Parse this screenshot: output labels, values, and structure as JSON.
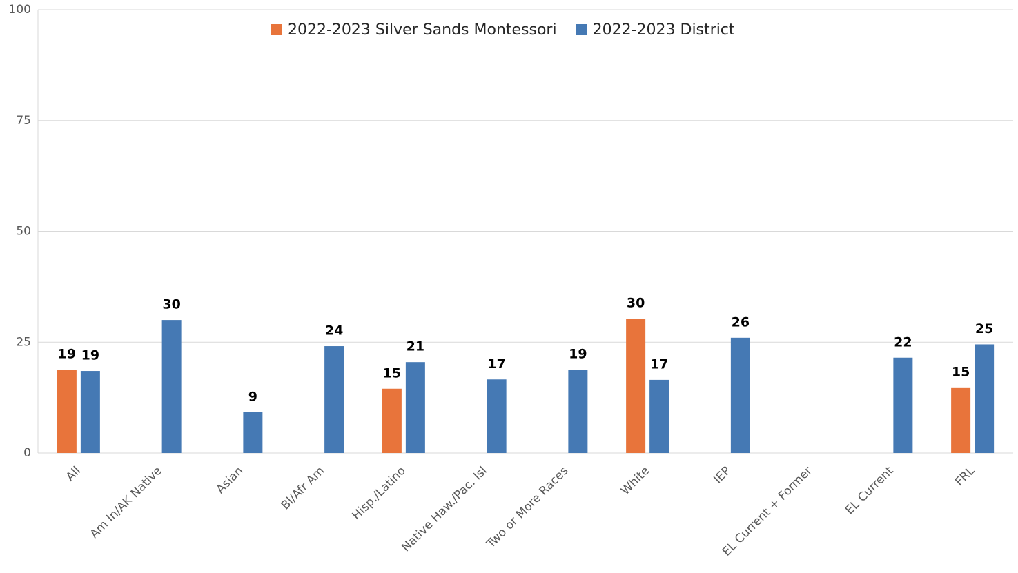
{
  "chart_data": {
    "type": "bar",
    "categories": [
      "All",
      "Am In/AK Native",
      "Asian",
      "Bl/Afr Am",
      "Hisp./Latino",
      "Native Haw./Pac. Isl",
      "Two or More Races",
      "White",
      "IEP",
      "EL Current + Former",
      "EL Current",
      "FRL"
    ],
    "series": [
      {
        "name": "2022-2023 Silver Sands Montessori",
        "color": "#e8743b",
        "values": [
          18.8,
          null,
          null,
          null,
          14.5,
          null,
          null,
          30.3,
          null,
          null,
          null,
          14.8
        ],
        "value_labels": [
          "19",
          null,
          null,
          null,
          "15",
          null,
          null,
          "30",
          null,
          null,
          null,
          "15"
        ]
      },
      {
        "name": "2022-2023 District",
        "color": "#4579b4",
        "values": [
          18.5,
          30.0,
          9.2,
          24.1,
          20.5,
          16.6,
          18.8,
          16.5,
          26.0,
          null,
          21.5,
          24.5
        ],
        "value_labels": [
          "19",
          "30",
          "9",
          "24",
          "21",
          "17",
          "19",
          "17",
          "26",
          null,
          "22",
          "25"
        ]
      }
    ],
    "ylim": [
      0,
      100
    ],
    "yticks": [
      0,
      25,
      50,
      75,
      100
    ],
    "grid": true,
    "legend": "top"
  }
}
